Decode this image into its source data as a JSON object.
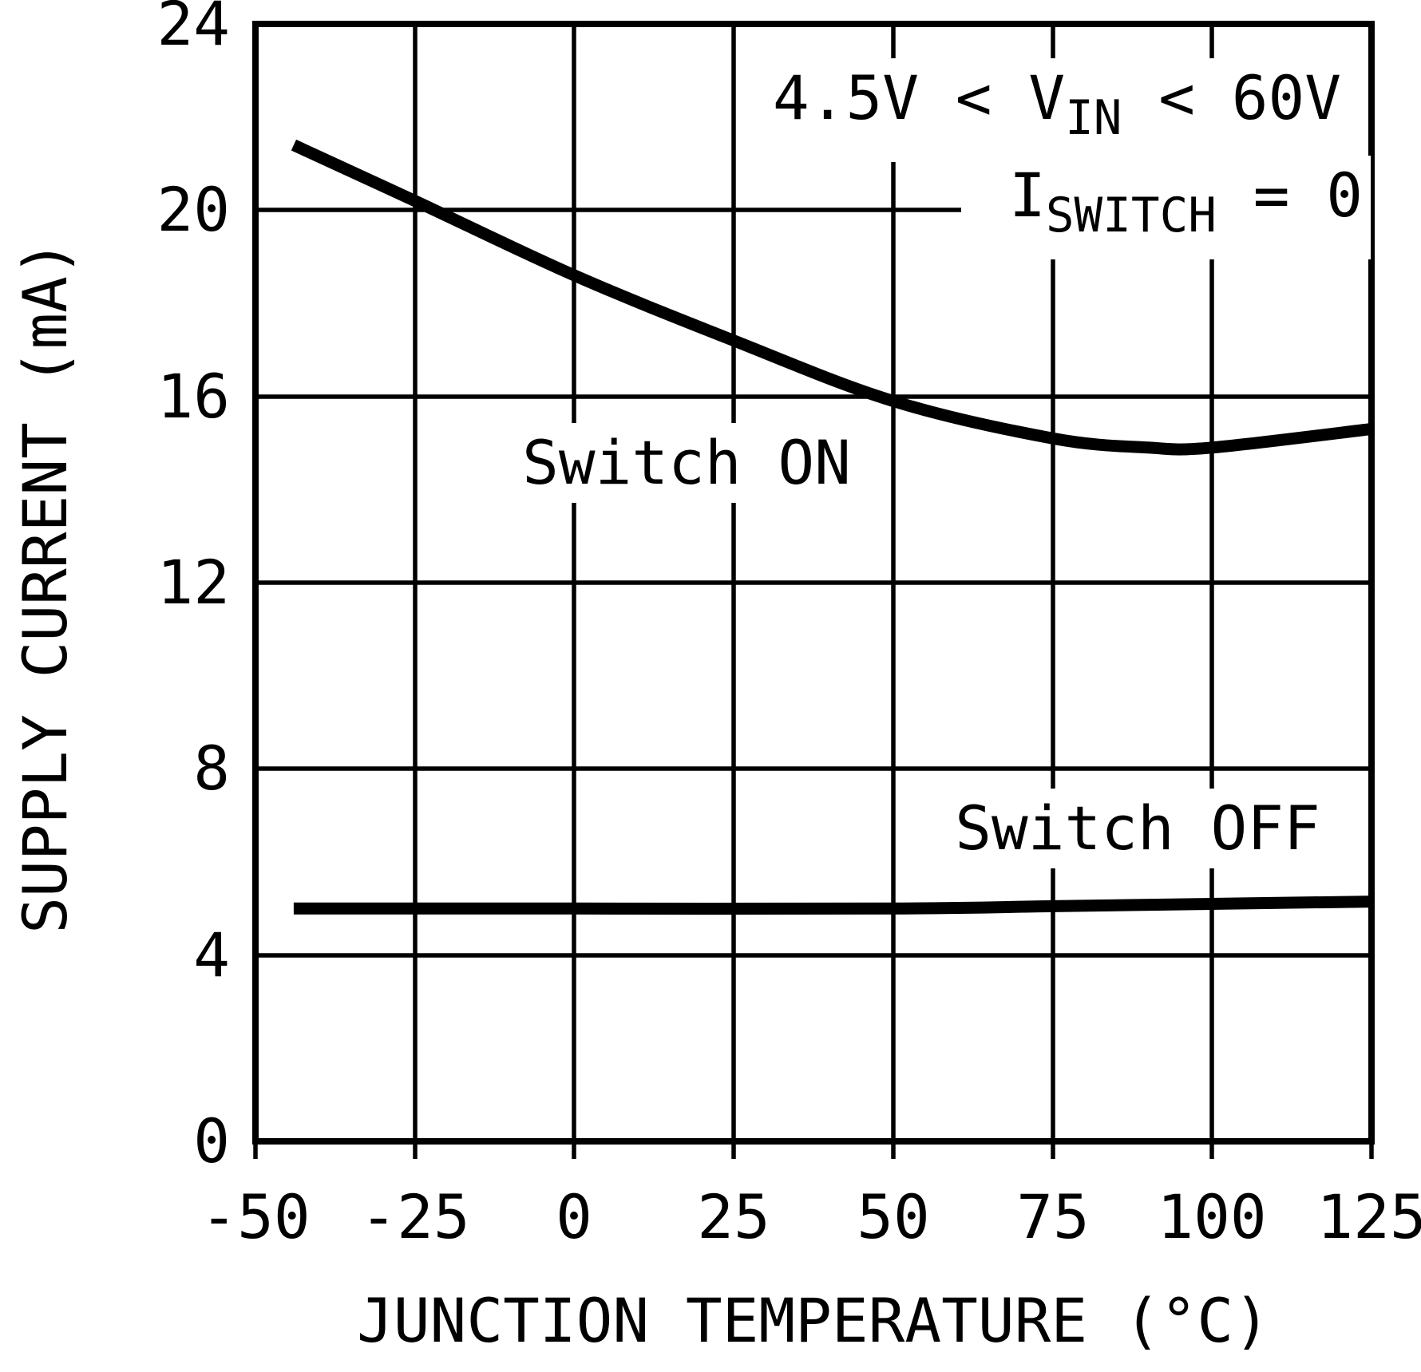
{
  "chart_data": {
    "type": "line",
    "title": "",
    "xlabel": "JUNCTION TEMPERATURE (°C)",
    "ylabel": "SUPPLY CURRENT (mA)",
    "xlim": [
      -50,
      125
    ],
    "ylim": [
      0,
      24
    ],
    "x_tick_labels": [
      "-50",
      "-25",
      "0",
      "25",
      "50",
      "75",
      "100",
      "125"
    ],
    "y_tick_labels": [
      "24",
      "20",
      "16",
      "12",
      "8",
      "4",
      "0"
    ],
    "grid": true,
    "line_color": "#000000",
    "conditions_text": [
      "4.5V < VIN < 60V",
      "ISWITCH = 0"
    ],
    "series": [
      {
        "name": "Switch ON",
        "points": [
          [
            -44,
            21.4
          ],
          [
            -25,
            20.2
          ],
          [
            0,
            18.6
          ],
          [
            25,
            17.2
          ],
          [
            50,
            15.9
          ],
          [
            75,
            15.1
          ],
          [
            90,
            14.9
          ],
          [
            100,
            14.9
          ],
          [
            125,
            15.3
          ]
        ]
      },
      {
        "name": "Switch OFF",
        "points": [
          [
            -44,
            5.0
          ],
          [
            0,
            5.0
          ],
          [
            50,
            5.0
          ],
          [
            75,
            5.05
          ],
          [
            100,
            5.1
          ],
          [
            125,
            5.15
          ]
        ]
      }
    ]
  },
  "annotation": {
    "line1": {
      "pre": "4.5V < V",
      "sub": "IN",
      "post": " < 60V"
    },
    "line2": {
      "pre": "I",
      "sub": "SWITCH",
      "post": " = 0"
    }
  }
}
